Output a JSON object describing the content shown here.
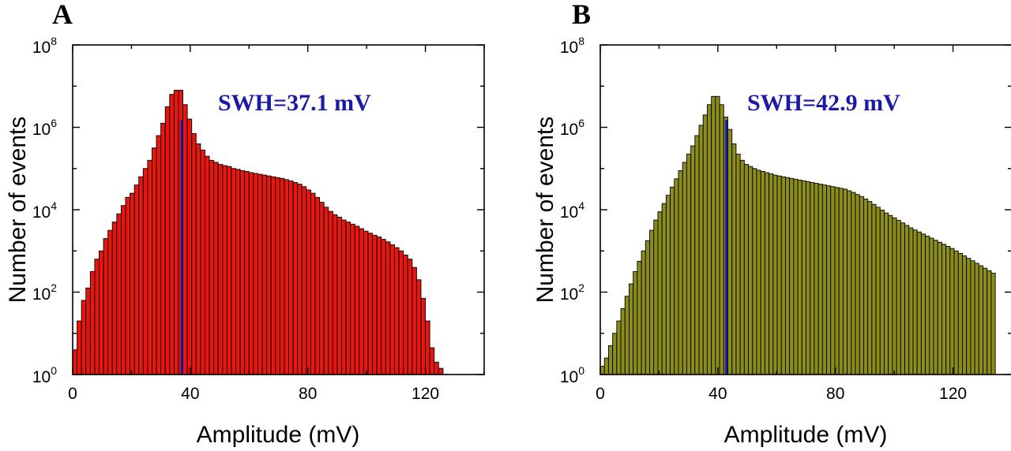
{
  "chart_data": [
    {
      "type": "bar",
      "panel": "A",
      "xlabel": "Amplitude (mV)",
      "ylabel": "Number of events",
      "xlim": [
        0,
        140
      ],
      "ylim_log10": [
        0,
        8
      ],
      "x_ticks": [
        "0",
        "40",
        "80",
        "120"
      ],
      "y_ticks": [
        "10",
        "10",
        "10",
        "10",
        "10"
      ],
      "y_tick_exponents": [
        "0",
        "2",
        "4",
        "6",
        "8"
      ],
      "y_scale": "log",
      "bin_width": 1.5,
      "bar_color": "#e8160f",
      "annotation": "SWH=37.1 mV",
      "annotation_color": "#1a1aa6",
      "swh_mV": 37.1,
      "swh_line_top": 1500000,
      "bins_log10": [
        0.6,
        1.3,
        1.8,
        2.1,
        2.5,
        2.8,
        3.0,
        3.3,
        3.5,
        3.7,
        3.9,
        4.1,
        4.3,
        4.4,
        4.6,
        4.8,
        5.0,
        5.2,
        5.5,
        5.8,
        6.1,
        6.5,
        6.8,
        6.9,
        6.9,
        6.55,
        6.2,
        5.85,
        5.6,
        5.45,
        5.3,
        5.2,
        5.15,
        5.1,
        5.07,
        5.05,
        5.0,
        4.98,
        4.95,
        4.93,
        4.9,
        4.88,
        4.86,
        4.84,
        4.82,
        4.8,
        4.78,
        4.76,
        4.73,
        4.7,
        4.66,
        4.62,
        4.56,
        4.48,
        4.4,
        4.3,
        4.18,
        4.06,
        3.96,
        3.88,
        3.82,
        3.75,
        3.7,
        3.65,
        3.6,
        3.54,
        3.48,
        3.43,
        3.38,
        3.34,
        3.28,
        3.22,
        3.15,
        3.08,
        3.0,
        2.9,
        2.8,
        2.6,
        2.3,
        1.85,
        1.3,
        0.65,
        0.3,
        0.15
      ]
    },
    {
      "type": "bar",
      "panel": "B",
      "xlabel": "Amplitude (mV)",
      "ylabel": "Number of events",
      "xlim": [
        0,
        140
      ],
      "ylim_log10": [
        0,
        8
      ],
      "x_ticks": [
        "0",
        "40",
        "80",
        "120"
      ],
      "y_ticks": [
        "10",
        "10",
        "10",
        "10",
        "10"
      ],
      "y_tick_exponents": [
        "0",
        "2",
        "4",
        "6",
        "8"
      ],
      "y_scale": "log",
      "bin_width": 1.4,
      "bar_color": "#8a8c1c",
      "annotation": "SWH=42.9 mV",
      "annotation_color": "#1a1aa6",
      "swh_mV": 42.9,
      "swh_line_top": 1500000,
      "bins_log10": [
        0.2,
        0.4,
        0.7,
        1.0,
        1.3,
        1.6,
        1.9,
        2.2,
        2.5,
        2.75,
        3.0,
        3.25,
        3.5,
        3.75,
        3.95,
        4.15,
        4.35,
        4.55,
        4.75,
        4.95,
        5.15,
        5.35,
        5.55,
        5.8,
        6.05,
        6.3,
        6.55,
        6.75,
        6.75,
        6.55,
        6.25,
        5.95,
        5.6,
        5.35,
        5.2,
        5.1,
        5.05,
        5.0,
        4.96,
        4.93,
        4.9,
        4.87,
        4.84,
        4.82,
        4.8,
        4.78,
        4.76,
        4.74,
        4.72,
        4.7,
        4.68,
        4.66,
        4.64,
        4.62,
        4.6,
        4.58,
        4.56,
        4.54,
        4.52,
        4.5,
        4.46,
        4.42,
        4.37,
        4.32,
        4.26,
        4.2,
        4.13,
        4.06,
        3.99,
        3.92,
        3.86,
        3.8,
        3.74,
        3.68,
        3.62,
        3.56,
        3.51,
        3.46,
        3.41,
        3.36,
        3.31,
        3.26,
        3.21,
        3.16,
        3.11,
        3.06,
        3.0,
        2.94,
        2.88,
        2.82,
        2.76,
        2.7,
        2.64,
        2.58,
        2.52,
        2.46
      ]
    }
  ]
}
